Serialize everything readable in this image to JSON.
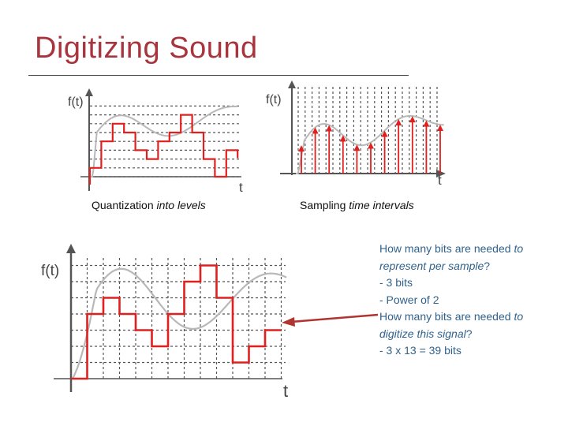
{
  "slide": {
    "title": "Digitizing Sound",
    "accent_color": "#a8343d",
    "text_color": "#31628c"
  },
  "quantization_figure": {
    "y_axis_label": "f(t)",
    "x_axis_label": "t",
    "caption_plain": "Quantization ",
    "caption_italic": "into levels",
    "levels": [
      1,
      4,
      6,
      5,
      3,
      2,
      4,
      5,
      7,
      5,
      2,
      0,
      3
    ]
  },
  "sampling_figure": {
    "y_axis_label": "f(t)",
    "x_axis_label": "t",
    "caption_plain": "Sampling ",
    "caption_italic": "time intervals"
  },
  "large_figure": {
    "y_axis_label": "f(t)",
    "x_axis_label": "t",
    "levels": [
      0,
      4,
      5,
      4,
      3,
      2,
      4,
      6,
      7,
      5,
      1,
      2,
      3
    ]
  },
  "notes": {
    "q1_plain": "How many bits are needed ",
    "q1_italic_a": "to",
    "q1_italic_b": "represent per sample",
    "q1_end": "?",
    "a1_line1": "- 3 bits",
    "a1_line2": "- Power of 2",
    "q2_plain": "How many bits are needed ",
    "q2_italic_a": "to",
    "q2_italic_b": "digitize this signal",
    "q2_end": "?",
    "a2": "- 3 x 13 = 39 bits"
  },
  "colors": {
    "signal_red": "#e0201e",
    "analog_gray": "#b8b8b8",
    "arrow_red": "#b03430",
    "grid": "#555555"
  }
}
